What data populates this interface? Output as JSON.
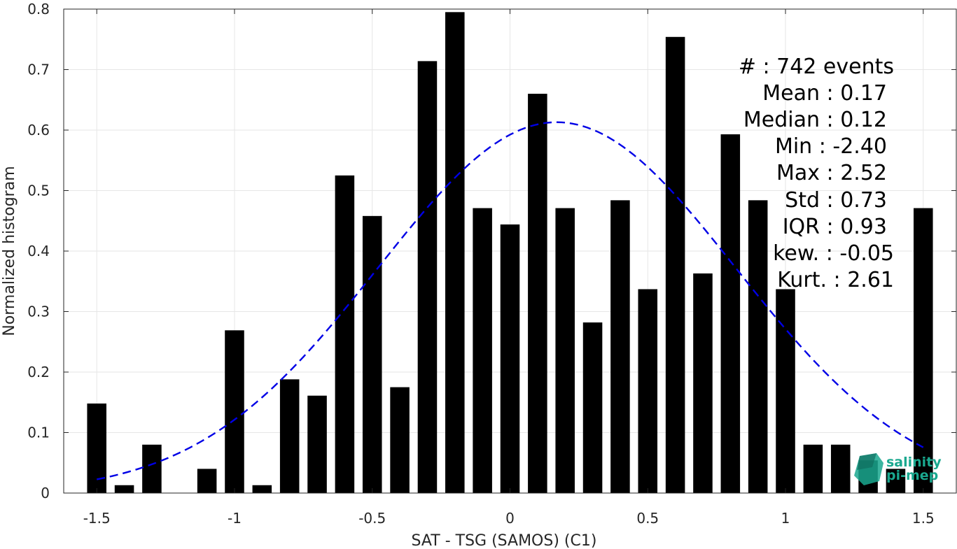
{
  "chart_data": {
    "type": "bar",
    "xlabel": "SAT - TSG (SAMOS) (C1)",
    "ylabel": "Normalized histogram",
    "xlim": [
      -1.62,
      1.62
    ],
    "ylim": [
      0,
      0.8
    ],
    "grid": true,
    "xticks": [
      -1.5,
      -1,
      -0.5,
      0,
      0.5,
      1,
      1.5
    ],
    "xtick_labels": [
      "-1.5",
      "-1",
      "-0.5",
      "0",
      "0.5",
      "1",
      "1.5"
    ],
    "yticks": [
      0,
      0.1,
      0.2,
      0.3,
      0.4,
      0.5,
      0.6,
      0.7,
      0.8
    ],
    "ytick_labels": [
      "0",
      "0.1",
      "0.2",
      "0.3",
      "0.4",
      "0.5",
      "0.6",
      "0.7",
      "0.8"
    ],
    "bar_width": 0.07,
    "bar_color": "#000000",
    "series": [
      {
        "x": [
          -1.5,
          -1.4,
          -1.3,
          -1.2,
          -1.1,
          -1.0,
          -0.9,
          -0.8,
          -0.7,
          -0.6,
          -0.5,
          -0.4,
          -0.3,
          -0.2,
          -0.1,
          0.0,
          0.1,
          0.2,
          0.3,
          0.4,
          0.5,
          0.6,
          0.7,
          0.8,
          0.9,
          1.0,
          1.1,
          1.2,
          1.3,
          1.4,
          1.5
        ],
        "values": [
          0.148,
          0.013,
          0.08,
          0.0,
          0.04,
          0.269,
          0.013,
          0.188,
          0.161,
          0.525,
          0.458,
          0.175,
          0.714,
          0.795,
          0.471,
          0.444,
          0.66,
          0.471,
          0.282,
          0.484,
          0.337,
          0.754,
          0.363,
          0.593,
          0.484,
          0.337,
          0.08,
          0.08,
          0.054,
          0.04,
          0.471
        ]
      }
    ],
    "fit": {
      "type": "gaussian",
      "style": "dashed",
      "color": "#0000e6",
      "mean": 0.17,
      "std": 0.65,
      "peak": 0.613,
      "x_range": [
        -1.5,
        1.5
      ]
    },
    "stats": [
      "#  : 742 events",
      "Mean : 0.17",
      "Median : 0.12",
      "Min : -2.40",
      "Max : 2.52",
      "Std : 0.73",
      "IQR : 0.93",
      "kew. : -0.05",
      "Kurt. : 2.61"
    ]
  },
  "logo": {
    "line1": "salinity",
    "line2": "pi-mep",
    "color": "#1aa88f"
  }
}
